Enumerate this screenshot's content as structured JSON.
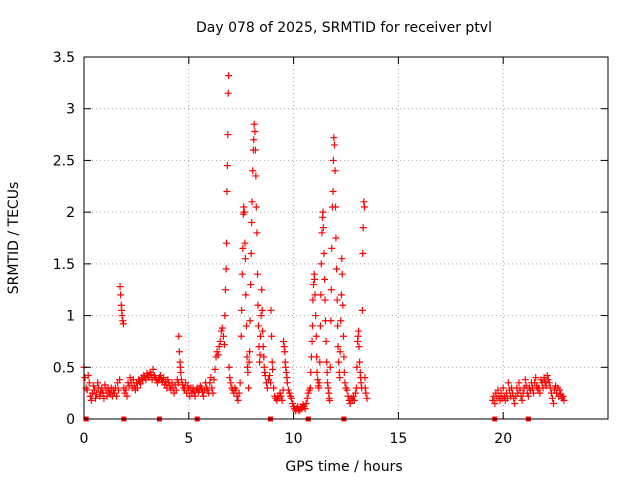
{
  "chart_data": {
    "type": "scatter",
    "title": "Day 078 of 2025, SRMTID for receiver ptvl",
    "xlabel": "GPS time / hours",
    "ylabel": "SRMTID / TECUs",
    "xlim": [
      0,
      25
    ],
    "ylim": [
      0,
      3.5
    ],
    "x_ticks": [
      0,
      5,
      10,
      15,
      20
    ],
    "x_tick_labels": [
      "0",
      "5",
      "10",
      "15",
      "20"
    ],
    "y_ticks": [
      0,
      0.5,
      1,
      1.5,
      2,
      2.5,
      3,
      3.5
    ],
    "y_tick_labels": [
      "0",
      "0.5",
      "1",
      "1.5",
      "2",
      "2.5",
      "3",
      "3.5"
    ],
    "grid": true,
    "marker": "plus",
    "series_color": "#ff0000",
    "baseline_markers_x": [
      0.1,
      1.9,
      3.6,
      5.4,
      8.9,
      10.7,
      12.4,
      19.6,
      21.2
    ],
    "points": [
      [
        0.0,
        0.5
      ],
      [
        0.05,
        0.4
      ],
      [
        0.1,
        0.3
      ],
      [
        0.15,
        0.28
      ],
      [
        0.2,
        0.42
      ],
      [
        0.25,
        0.35
      ],
      [
        0.3,
        0.22
      ],
      [
        0.35,
        0.18
      ],
      [
        0.4,
        0.25
      ],
      [
        0.45,
        0.32
      ],
      [
        0.5,
        0.28
      ],
      [
        0.55,
        0.2
      ],
      [
        0.6,
        0.24
      ],
      [
        0.65,
        0.35
      ],
      [
        0.7,
        0.3
      ],
      [
        0.75,
        0.22
      ],
      [
        0.8,
        0.26
      ],
      [
        0.85,
        0.3
      ],
      [
        0.9,
        0.25
      ],
      [
        0.95,
        0.2
      ],
      [
        1.0,
        0.33
      ],
      [
        1.05,
        0.28
      ],
      [
        1.1,
        0.22
      ],
      [
        1.15,
        0.3
      ],
      [
        1.2,
        0.26
      ],
      [
        1.25,
        0.24
      ],
      [
        1.3,
        0.3
      ],
      [
        1.35,
        0.22
      ],
      [
        1.4,
        0.28
      ],
      [
        1.45,
        0.25
      ],
      [
        1.5,
        0.3
      ],
      [
        1.55,
        0.22
      ],
      [
        1.6,
        0.35
      ],
      [
        1.65,
        0.28
      ],
      [
        1.7,
        0.38
      ],
      [
        1.72,
        1.28
      ],
      [
        1.75,
        1.2
      ],
      [
        1.78,
        1.1
      ],
      [
        1.8,
        1.05
      ],
      [
        1.82,
        1.0
      ],
      [
        1.85,
        0.95
      ],
      [
        1.88,
        0.92
      ],
      [
        1.9,
        0.3
      ],
      [
        1.95,
        0.25
      ],
      [
        2.0,
        0.28
      ],
      [
        2.05,
        0.22
      ],
      [
        2.1,
        0.35
      ],
      [
        2.15,
        0.32
      ],
      [
        2.2,
        0.4
      ],
      [
        2.25,
        0.35
      ],
      [
        2.3,
        0.3
      ],
      [
        2.35,
        0.38
      ],
      [
        2.4,
        0.32
      ],
      [
        2.45,
        0.28
      ],
      [
        2.5,
        0.35
      ],
      [
        2.55,
        0.3
      ],
      [
        2.6,
        0.38
      ],
      [
        2.65,
        0.36
      ],
      [
        2.7,
        0.34
      ],
      [
        2.75,
        0.4
      ],
      [
        2.8,
        0.38
      ],
      [
        2.85,
        0.42
      ],
      [
        2.9,
        0.4
      ],
      [
        2.95,
        0.38
      ],
      [
        3.0,
        0.44
      ],
      [
        3.05,
        0.42
      ],
      [
        3.1,
        0.4
      ],
      [
        3.15,
        0.45
      ],
      [
        3.2,
        0.43
      ],
      [
        3.25,
        0.38
      ],
      [
        3.3,
        0.48
      ],
      [
        3.35,
        0.42
      ],
      [
        3.4,
        0.4
      ],
      [
        3.45,
        0.38
      ],
      [
        3.5,
        0.35
      ],
      [
        3.55,
        0.38
      ],
      [
        3.6,
        0.4
      ],
      [
        3.65,
        0.42
      ],
      [
        3.7,
        0.38
      ],
      [
        3.75,
        0.36
      ],
      [
        3.8,
        0.4
      ],
      [
        3.85,
        0.33
      ],
      [
        3.9,
        0.36
      ],
      [
        3.95,
        0.3
      ],
      [
        4.0,
        0.38
      ],
      [
        4.05,
        0.35
      ],
      [
        4.1,
        0.32
      ],
      [
        4.15,
        0.28
      ],
      [
        4.2,
        0.35
      ],
      [
        4.25,
        0.3
      ],
      [
        4.3,
        0.25
      ],
      [
        4.35,
        0.33
      ],
      [
        4.4,
        0.28
      ],
      [
        4.45,
        0.38
      ],
      [
        4.5,
        0.35
      ],
      [
        4.52,
        0.8
      ],
      [
        4.55,
        0.65
      ],
      [
        4.58,
        0.55
      ],
      [
        4.6,
        0.5
      ],
      [
        4.62,
        0.45
      ],
      [
        4.65,
        0.38
      ],
      [
        4.7,
        0.33
      ],
      [
        4.75,
        0.3
      ],
      [
        4.8,
        0.28
      ],
      [
        4.85,
        0.35
      ],
      [
        4.9,
        0.25
      ],
      [
        4.95,
        0.32
      ],
      [
        5.0,
        0.28
      ],
      [
        5.05,
        0.22
      ],
      [
        5.1,
        0.3
      ],
      [
        5.15,
        0.25
      ],
      [
        5.2,
        0.3
      ],
      [
        5.25,
        0.26
      ],
      [
        5.3,
        0.22
      ],
      [
        5.35,
        0.28
      ],
      [
        5.4,
        0.3
      ],
      [
        5.45,
        0.26
      ],
      [
        5.5,
        0.28
      ],
      [
        5.55,
        0.32
      ],
      [
        5.6,
        0.3
      ],
      [
        5.65,
        0.26
      ],
      [
        5.7,
        0.22
      ],
      [
        5.75,
        0.28
      ],
      [
        5.8,
        0.35
      ],
      [
        5.85,
        0.3
      ],
      [
        5.9,
        0.28
      ],
      [
        5.95,
        0.25
      ],
      [
        6.0,
        0.35
      ],
      [
        6.05,
        0.4
      ],
      [
        6.1,
        0.3
      ],
      [
        6.15,
        0.25
      ],
      [
        6.2,
        0.38
      ],
      [
        6.25,
        0.48
      ],
      [
        6.3,
        0.6
      ],
      [
        6.35,
        0.65
      ],
      [
        6.4,
        0.62
      ],
      [
        6.45,
        0.7
      ],
      [
        6.5,
        0.75
      ],
      [
        6.55,
        0.85
      ],
      [
        6.6,
        0.88
      ],
      [
        6.65,
        0.8
      ],
      [
        6.7,
        0.72
      ],
      [
        6.72,
        1.0
      ],
      [
        6.75,
        1.25
      ],
      [
        6.78,
        1.45
      ],
      [
        6.8,
        1.7
      ],
      [
        6.82,
        2.2
      ],
      [
        6.84,
        2.45
      ],
      [
        6.86,
        2.75
      ],
      [
        6.88,
        3.15
      ],
      [
        6.9,
        3.32
      ],
      [
        6.92,
        0.5
      ],
      [
        6.95,
        0.4
      ],
      [
        7.0,
        0.35
      ],
      [
        7.05,
        0.3
      ],
      [
        7.1,
        0.28
      ],
      [
        7.15,
        0.25
      ],
      [
        7.2,
        0.3
      ],
      [
        7.25,
        0.28
      ],
      [
        7.3,
        0.22
      ],
      [
        7.35,
        0.18
      ],
      [
        7.4,
        0.25
      ],
      [
        7.45,
        0.35
      ],
      [
        7.5,
        0.8
      ],
      [
        7.52,
        1.05
      ],
      [
        7.55,
        1.4
      ],
      [
        7.58,
        1.65
      ],
      [
        7.6,
        1.98
      ],
      [
        7.62,
        2.05
      ],
      [
        7.65,
        2.0
      ],
      [
        7.68,
        1.7
      ],
      [
        7.7,
        1.55
      ],
      [
        7.72,
        1.2
      ],
      [
        7.75,
        0.9
      ],
      [
        7.78,
        0.6
      ],
      [
        7.8,
        0.5
      ],
      [
        7.82,
        0.45
      ],
      [
        7.85,
        0.3
      ],
      [
        7.88,
        0.55
      ],
      [
        7.9,
        0.65
      ],
      [
        7.92,
        0.95
      ],
      [
        7.95,
        1.3
      ],
      [
        7.98,
        1.6
      ],
      [
        8.0,
        1.9
      ],
      [
        8.02,
        2.1
      ],
      [
        8.05,
        2.4
      ],
      [
        8.08,
        2.6
      ],
      [
        8.1,
        2.7
      ],
      [
        8.12,
        2.85
      ],
      [
        8.15,
        2.78
      ],
      [
        8.18,
        2.6
      ],
      [
        8.2,
        2.35
      ],
      [
        8.22,
        2.05
      ],
      [
        8.25,
        1.8
      ],
      [
        8.28,
        1.4
      ],
      [
        8.3,
        1.1
      ],
      [
        8.32,
        0.9
      ],
      [
        8.35,
        0.7
      ],
      [
        8.38,
        0.55
      ],
      [
        8.4,
        0.62
      ],
      [
        8.42,
        0.8
      ],
      [
        8.45,
        1.0
      ],
      [
        8.48,
        1.25
      ],
      [
        8.5,
        1.05
      ],
      [
        8.52,
        0.85
      ],
      [
        8.55,
        0.7
      ],
      [
        8.58,
        0.6
      ],
      [
        8.6,
        0.5
      ],
      [
        8.62,
        0.45
      ],
      [
        8.65,
        0.42
      ],
      [
        8.7,
        0.35
      ],
      [
        8.75,
        0.3
      ],
      [
        8.8,
        0.38
      ],
      [
        8.85,
        0.42
      ],
      [
        8.9,
        0.35
      ],
      [
        8.92,
        1.05
      ],
      [
        8.95,
        0.8
      ],
      [
        8.98,
        0.55
      ],
      [
        9.0,
        0.48
      ],
      [
        9.05,
        0.3
      ],
      [
        9.1,
        0.22
      ],
      [
        9.15,
        0.2
      ],
      [
        9.2,
        0.18
      ],
      [
        9.25,
        0.22
      ],
      [
        9.3,
        0.2
      ],
      [
        9.35,
        0.25
      ],
      [
        9.4,
        0.22
      ],
      [
        9.45,
        0.18
      ],
      [
        9.5,
        0.28
      ],
      [
        9.52,
        0.75
      ],
      [
        9.55,
        0.7
      ],
      [
        9.58,
        0.65
      ],
      [
        9.6,
        0.55
      ],
      [
        9.62,
        0.5
      ],
      [
        9.65,
        0.45
      ],
      [
        9.68,
        0.4
      ],
      [
        9.7,
        0.35
      ],
      [
        9.75,
        0.28
      ],
      [
        9.8,
        0.25
      ],
      [
        9.85,
        0.22
      ],
      [
        9.9,
        0.2
      ],
      [
        9.95,
        0.15
      ],
      [
        10.0,
        0.12
      ],
      [
        10.05,
        0.1
      ],
      [
        10.1,
        0.08
      ],
      [
        10.15,
        0.1
      ],
      [
        10.2,
        0.12
      ],
      [
        10.25,
        0.08
      ],
      [
        10.3,
        0.09
      ],
      [
        10.35,
        0.12
      ],
      [
        10.4,
        0.1
      ],
      [
        10.45,
        0.14
      ],
      [
        10.5,
        0.12
      ],
      [
        10.55,
        0.1
      ],
      [
        10.6,
        0.15
      ],
      [
        10.65,
        0.2
      ],
      [
        10.7,
        0.25
      ],
      [
        10.75,
        0.28
      ],
      [
        10.8,
        0.3
      ],
      [
        10.82,
        0.45
      ],
      [
        10.85,
        0.6
      ],
      [
        10.88,
        0.75
      ],
      [
        10.9,
        0.9
      ],
      [
        10.92,
        1.15
      ],
      [
        10.95,
        1.3
      ],
      [
        10.98,
        1.4
      ],
      [
        11.0,
        1.35
      ],
      [
        11.02,
        1.2
      ],
      [
        11.05,
        1.0
      ],
      [
        11.08,
        0.8
      ],
      [
        11.1,
        0.6
      ],
      [
        11.12,
        0.45
      ],
      [
        11.15,
        0.38
      ],
      [
        11.18,
        0.32
      ],
      [
        11.2,
        0.3
      ],
      [
        11.22,
        0.35
      ],
      [
        11.25,
        0.55
      ],
      [
        11.28,
        0.9
      ],
      [
        11.3,
        1.2
      ],
      [
        11.32,
        1.5
      ],
      [
        11.35,
        1.8
      ],
      [
        11.38,
        1.95
      ],
      [
        11.4,
        2.0
      ],
      [
        11.42,
        1.85
      ],
      [
        11.45,
        1.6
      ],
      [
        11.48,
        1.35
      ],
      [
        11.5,
        1.15
      ],
      [
        11.52,
        0.95
      ],
      [
        11.55,
        0.75
      ],
      [
        11.58,
        0.55
      ],
      [
        11.6,
        0.45
      ],
      [
        11.62,
        0.35
      ],
      [
        11.65,
        0.3
      ],
      [
        11.68,
        0.25
      ],
      [
        11.7,
        0.2
      ],
      [
        11.72,
        0.18
      ],
      [
        11.75,
        0.5
      ],
      [
        11.78,
        0.95
      ],
      [
        11.8,
        1.25
      ],
      [
        11.82,
        1.65
      ],
      [
        11.85,
        2.05
      ],
      [
        11.88,
        2.2
      ],
      [
        11.9,
        2.5
      ],
      [
        11.92,
        2.72
      ],
      [
        11.95,
        2.65
      ],
      [
        11.98,
        2.4
      ],
      [
        12.0,
        2.05
      ],
      [
        12.02,
        1.75
      ],
      [
        12.05,
        1.45
      ],
      [
        12.08,
        1.15
      ],
      [
        12.1,
        0.9
      ],
      [
        12.12,
        0.7
      ],
      [
        12.15,
        0.55
      ],
      [
        12.18,
        0.45
      ],
      [
        12.2,
        0.4
      ],
      [
        12.22,
        0.65
      ],
      [
        12.25,
        0.95
      ],
      [
        12.28,
        1.2
      ],
      [
        12.3,
        1.55
      ],
      [
        12.32,
        1.4
      ],
      [
        12.35,
        1.1
      ],
      [
        12.38,
        0.8
      ],
      [
        12.4,
        0.6
      ],
      [
        12.42,
        0.45
      ],
      [
        12.45,
        0.35
      ],
      [
        12.5,
        0.3
      ],
      [
        12.55,
        0.28
      ],
      [
        12.6,
        0.22
      ],
      [
        12.65,
        0.18
      ],
      [
        12.7,
        0.15
      ],
      [
        12.75,
        0.2
      ],
      [
        12.8,
        0.18
      ],
      [
        12.85,
        0.22
      ],
      [
        12.9,
        0.18
      ],
      [
        12.95,
        0.25
      ],
      [
        13.0,
        0.3
      ],
      [
        13.02,
        0.5
      ],
      [
        13.05,
        0.75
      ],
      [
        13.08,
        0.8
      ],
      [
        13.1,
        0.85
      ],
      [
        13.12,
        0.7
      ],
      [
        13.15,
        0.55
      ],
      [
        13.18,
        0.45
      ],
      [
        13.2,
        0.4
      ],
      [
        13.22,
        0.35
      ],
      [
        13.25,
        0.3
      ],
      [
        13.28,
        1.05
      ],
      [
        13.3,
        1.6
      ],
      [
        13.32,
        1.85
      ],
      [
        13.35,
        2.1
      ],
      [
        13.38,
        2.05
      ],
      [
        13.4,
        0.4
      ],
      [
        13.42,
        0.3
      ],
      [
        13.45,
        0.25
      ],
      [
        13.5,
        0.2
      ],
      [
        19.5,
        0.18
      ],
      [
        19.55,
        0.22
      ],
      [
        19.6,
        0.15
      ],
      [
        19.65,
        0.25
      ],
      [
        19.7,
        0.2
      ],
      [
        19.75,
        0.28
      ],
      [
        19.8,
        0.22
      ],
      [
        19.85,
        0.18
      ],
      [
        19.9,
        0.25
      ],
      [
        19.95,
        0.2
      ],
      [
        20.0,
        0.3
      ],
      [
        20.05,
        0.22
      ],
      [
        20.1,
        0.18
      ],
      [
        20.15,
        0.25
      ],
      [
        20.2,
        0.2
      ],
      [
        20.25,
        0.35
      ],
      [
        20.3,
        0.28
      ],
      [
        20.35,
        0.22
      ],
      [
        20.4,
        0.3
      ],
      [
        20.45,
        0.25
      ],
      [
        20.5,
        0.2
      ],
      [
        20.55,
        0.15
      ],
      [
        20.6,
        0.22
      ],
      [
        20.65,
        0.3
      ],
      [
        20.7,
        0.25
      ],
      [
        20.75,
        0.35
      ],
      [
        20.8,
        0.28
      ],
      [
        20.85,
        0.22
      ],
      [
        20.9,
        0.18
      ],
      [
        20.95,
        0.25
      ],
      [
        21.0,
        0.3
      ],
      [
        21.05,
        0.38
      ],
      [
        21.1,
        0.32
      ],
      [
        21.15,
        0.25
      ],
      [
        21.2,
        0.22
      ],
      [
        21.25,
        0.3
      ],
      [
        21.3,
        0.28
      ],
      [
        21.35,
        0.35
      ],
      [
        21.4,
        0.3
      ],
      [
        21.45,
        0.25
      ],
      [
        21.5,
        0.35
      ],
      [
        21.55,
        0.4
      ],
      [
        21.6,
        0.32
      ],
      [
        21.65,
        0.28
      ],
      [
        21.7,
        0.3
      ],
      [
        21.75,
        0.25
      ],
      [
        21.8,
        0.38
      ],
      [
        21.85,
        0.35
      ],
      [
        21.9,
        0.3
      ],
      [
        21.95,
        0.4
      ],
      [
        22.0,
        0.36
      ],
      [
        22.05,
        0.32
      ],
      [
        22.1,
        0.42
      ],
      [
        22.15,
        0.38
      ],
      [
        22.2,
        0.35
      ],
      [
        22.25,
        0.3
      ],
      [
        22.3,
        0.25
      ],
      [
        22.35,
        0.2
      ],
      [
        22.4,
        0.15
      ],
      [
        22.45,
        0.28
      ],
      [
        22.5,
        0.32
      ],
      [
        22.55,
        0.25
      ],
      [
        22.6,
        0.3
      ],
      [
        22.65,
        0.22
      ],
      [
        22.7,
        0.28
      ],
      [
        22.75,
        0.24
      ],
      [
        22.8,
        0.2
      ],
      [
        22.85,
        0.22
      ],
      [
        22.9,
        0.18
      ]
    ]
  }
}
